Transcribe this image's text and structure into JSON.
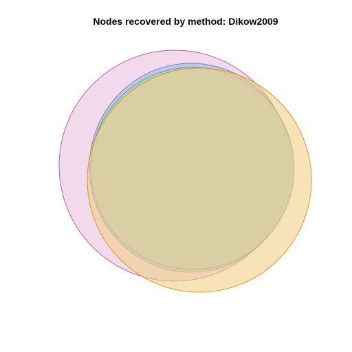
{
  "title": "Nodes recovered by method: Dikow2009",
  "diagram": {
    "type": "venn",
    "sets": [
      {
        "fill": "#e7c1dd",
        "stroke": "#b0508f"
      },
      {
        "fill": "#a9b2dc",
        "stroke": "#6e7fc0"
      },
      {
        "fill": "#a7d6c3",
        "stroke": "#4f9e7e"
      },
      {
        "fill": "#f3cf88",
        "stroke": "#d4900a"
      }
    ],
    "fill_opacity": 0.6,
    "stroke_opacity": 0.9
  }
}
